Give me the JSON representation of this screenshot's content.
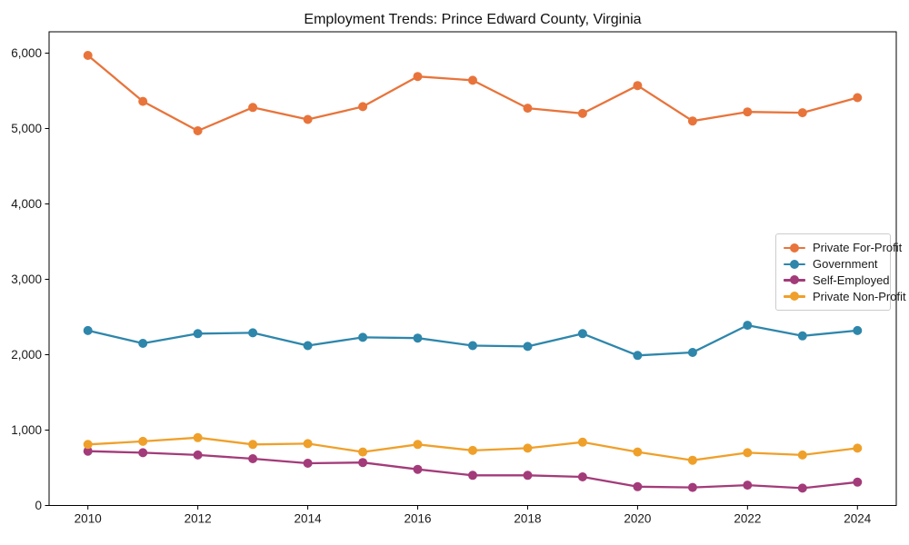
{
  "page": {
    "title": "Employment Trends: Prince Edward County, Virginia"
  },
  "chart_data": {
    "type": "line",
    "title": "Employment Trends: Prince Edward County, Virginia",
    "xlabel": "",
    "ylabel": "",
    "x": [
      2010,
      2011,
      2012,
      2013,
      2014,
      2015,
      2016,
      2017,
      2018,
      2019,
      2020,
      2021,
      2022,
      2023,
      2024
    ],
    "xticks": [
      2010,
      2012,
      2014,
      2016,
      2018,
      2020,
      2022,
      2024
    ],
    "yticks": [
      0,
      1000,
      2000,
      3000,
      4000,
      5000,
      6000
    ],
    "ytick_labels": [
      "0",
      "1,000",
      "2,000",
      "3,000",
      "4,000",
      "5,000",
      "6,000"
    ],
    "ylim": [
      0,
      6280
    ],
    "xlim": [
      2009.3,
      2024.7
    ],
    "grid": false,
    "legend_position": "center-right-inside",
    "marker": "circle",
    "series": [
      {
        "name": "Private For-Profit",
        "color": "#e8743b",
        "values": [
          5970,
          5360,
          4970,
          5280,
          5120,
          5290,
          5690,
          5640,
          5270,
          5200,
          5570,
          5100,
          5220,
          5210,
          5410
        ]
      },
      {
        "name": "Government",
        "color": "#2e86ab",
        "values": [
          2320,
          2150,
          2280,
          2290,
          2120,
          2230,
          2220,
          2120,
          2110,
          2280,
          1990,
          2030,
          2390,
          2250,
          2320
        ]
      },
      {
        "name": "Self-Employed",
        "color": "#a33b7a",
        "values": [
          720,
          700,
          670,
          620,
          560,
          570,
          480,
          400,
          400,
          380,
          250,
          240,
          270,
          230,
          310
        ]
      },
      {
        "name": "Private Non-Profit",
        "color": "#efa02a",
        "values": [
          810,
          850,
          900,
          810,
          820,
          710,
          810,
          730,
          760,
          840,
          710,
          600,
          700,
          670,
          760
        ]
      }
    ]
  }
}
